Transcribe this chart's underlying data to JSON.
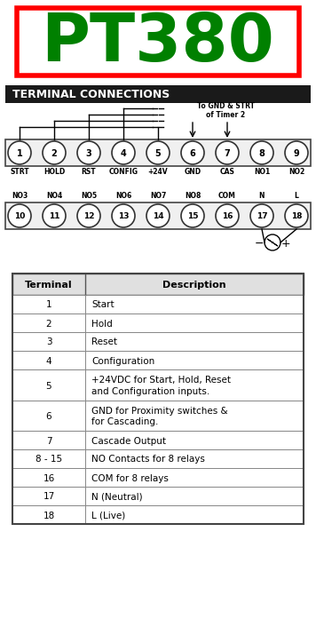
{
  "title": "PT380",
  "title_color": "#008000",
  "title_border_color": "#ff0000",
  "section_header": "TERMINAL CONNECTIONS",
  "header_bg": "#1a1a1a",
  "header_text_color": "#ffffff",
  "row1_terminals": [
    "1",
    "2",
    "3",
    "4",
    "5",
    "6",
    "7",
    "8",
    "9"
  ],
  "row1_labels": [
    "STRT",
    "HOLD",
    "RST",
    "CONFIG",
    "+24V",
    "GND",
    "CAS",
    "NO1",
    "NO2"
  ],
  "row2_terminals": [
    "10",
    "11",
    "12",
    "13",
    "14",
    "15",
    "16",
    "17",
    "18"
  ],
  "row2_labels": [
    "NO3",
    "NO4",
    "NO5",
    "NO6",
    "NO7",
    "NO8",
    "COM",
    "N",
    "L"
  ],
  "table_terminals": [
    "1",
    "2",
    "3",
    "4",
    "5",
    "6",
    "7",
    "8 - 15",
    "16",
    "17",
    "18"
  ],
  "table_descriptions": [
    "Start",
    "Hold",
    "Reset",
    "Configuration",
    "+24VDC for Start, Hold, Reset\nand Configuration inputs.",
    "GND for Proximity switches &\nfor Cascading.",
    "Cascade Output",
    "NO Contacts for 8 relays",
    "COM for 8 relays",
    "N (Neutral)",
    "L (Live)"
  ],
  "bg_color": "#ffffff",
  "figw": 3.56,
  "figh": 7.06,
  "dpi": 100
}
